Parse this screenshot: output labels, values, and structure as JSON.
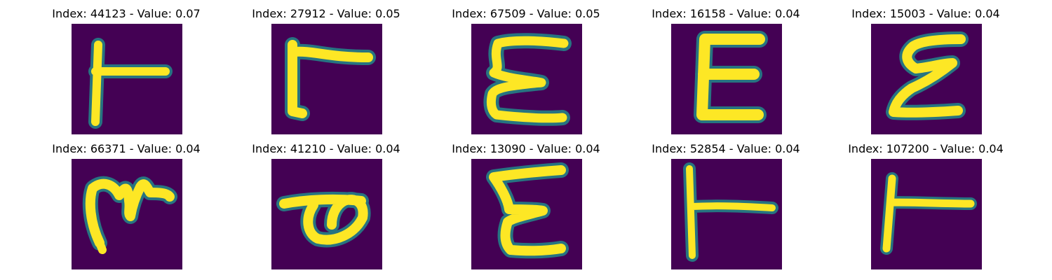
{
  "colors": {
    "background": "#440154",
    "glyph_core": "#fde725",
    "glyph_edge": "#21918c",
    "glyph_mid": "#5ec962"
  },
  "panels": [
    {
      "title": "Index: 44123 - Value: 0.07",
      "glyph": "T-rotated"
    },
    {
      "title": "Index: 27912 - Value: 0.05",
      "glyph": "r-shape"
    },
    {
      "title": "Index: 67509 - Value: 0.05",
      "glyph": "E-shape"
    },
    {
      "title": "Index: 16158 - Value: 0.04",
      "glyph": "E-shape"
    },
    {
      "title": "Index: 15003 - Value: 0.04",
      "glyph": "E-shape"
    },
    {
      "title": "Index: 66371 - Value: 0.04",
      "glyph": "m-shape"
    },
    {
      "title": "Index: 41210 - Value: 0.04",
      "glyph": "p-shape"
    },
    {
      "title": "Index: 13090 - Value: 0.04",
      "glyph": "E-shape"
    },
    {
      "title": "Index: 52854 - Value: 0.04",
      "glyph": "T-rotated"
    },
    {
      "title": "Index: 107200 - Value: 0.04",
      "glyph": "T-rotated"
    }
  ]
}
